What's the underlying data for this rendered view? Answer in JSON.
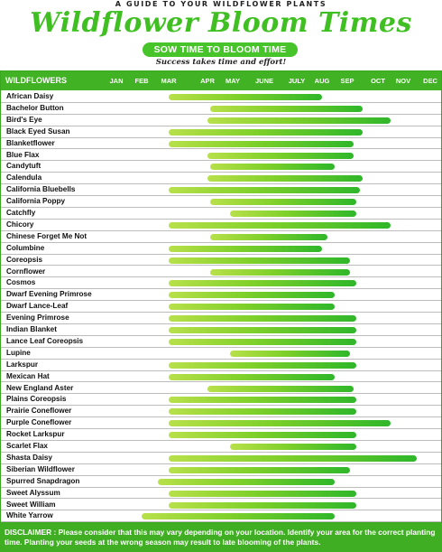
{
  "header": {
    "kicker": "A GUIDE TO YOUR WILDFLOWER PLANTS",
    "title": "Wildflower Bloom Times",
    "pill": "SOW TIME TO BLOOM TIME",
    "tagline": "Success takes time and effort!"
  },
  "chart_data": {
    "type": "bar",
    "orientation": "horizontal-range",
    "row_header": "WILDFLOWERS",
    "months": [
      "JAN",
      "FEB",
      "MAR",
      "APR",
      "MAY",
      "JUNE",
      "JULY",
      "AUG",
      "SEP",
      "OCT",
      "NOV",
      "DEC"
    ],
    "grid": true,
    "colors": {
      "bar_start": "#b8e04a",
      "bar_end": "#2fb72a",
      "header": "#41b224"
    },
    "rows": [
      {
        "name": "African Daisy",
        "start": 3.0,
        "end": 8.0
      },
      {
        "name": "Bachelor Button",
        "start": 4.1,
        "end": 9.5
      },
      {
        "name": "Bird's Eye",
        "start": 4.0,
        "end": 10.5
      },
      {
        "name": "Black Eyed Susan",
        "start": 3.0,
        "end": 9.5
      },
      {
        "name": "Blanketflower",
        "start": 3.0,
        "end": 9.2
      },
      {
        "name": "Blue Flax",
        "start": 4.0,
        "end": 9.2
      },
      {
        "name": "Candytuft",
        "start": 4.1,
        "end": 8.5
      },
      {
        "name": "Calendula",
        "start": 4.0,
        "end": 9.5
      },
      {
        "name": "California Bluebells",
        "start": 3.0,
        "end": 9.4
      },
      {
        "name": "California Poppy",
        "start": 4.1,
        "end": 9.3
      },
      {
        "name": "Catchfly",
        "start": 4.9,
        "end": 9.3
      },
      {
        "name": "Chicory",
        "start": 3.0,
        "end": 10.5
      },
      {
        "name": "Chinese Forget Me Not",
        "start": 4.1,
        "end": 8.2
      },
      {
        "name": "Columbine",
        "start": 3.0,
        "end": 8.0
      },
      {
        "name": "Coreopsis",
        "start": 3.0,
        "end": 9.1
      },
      {
        "name": "Cornflower",
        "start": 4.1,
        "end": 9.1
      },
      {
        "name": "Cosmos",
        "start": 3.0,
        "end": 9.3
      },
      {
        "name": "Dwarf Evening Primrose",
        "start": 3.0,
        "end": 8.5
      },
      {
        "name": "Dwarf Lance-Leaf",
        "start": 3.0,
        "end": 8.5
      },
      {
        "name": "Evening Primrose",
        "start": 3.0,
        "end": 9.3
      },
      {
        "name": "Indian Blanket",
        "start": 3.0,
        "end": 9.3
      },
      {
        "name": "Lance Leaf Coreopsis",
        "start": 3.0,
        "end": 9.3
      },
      {
        "name": "Lupine",
        "start": 4.9,
        "end": 9.1
      },
      {
        "name": "Larkspur",
        "start": 3.0,
        "end": 9.3
      },
      {
        "name": "Mexican Hat",
        "start": 3.0,
        "end": 8.5
      },
      {
        "name": "New England Aster",
        "start": 4.0,
        "end": 9.2
      },
      {
        "name": "Plains Coreopsis",
        "start": 3.0,
        "end": 9.3
      },
      {
        "name": "Prairie Coneflower",
        "start": 3.0,
        "end": 9.3
      },
      {
        "name": "Purple Coneflower",
        "start": 3.0,
        "end": 10.5
      },
      {
        "name": "Rocket Larkspur",
        "start": 3.0,
        "end": 9.3
      },
      {
        "name": "Scarlet Flax",
        "start": 4.9,
        "end": 9.3
      },
      {
        "name": "Shasta Daisy",
        "start": 3.0,
        "end": 11.5
      },
      {
        "name": "Siberian Wildflower",
        "start": 3.0,
        "end": 9.1
      },
      {
        "name": "Spurred Snapdragon",
        "start": 2.6,
        "end": 8.5
      },
      {
        "name": "Sweet Alyssum",
        "start": 3.0,
        "end": 9.3
      },
      {
        "name": "Sweet William",
        "start": 3.0,
        "end": 9.3
      },
      {
        "name": "White Yarrow",
        "start": 2.0,
        "end": 8.5
      }
    ]
  },
  "disclaimer": {
    "label": "DISCLAIMER :",
    "text": "Please consider that this may vary depending on your location. Identify your area for the correct planting time. Planting your seeds at the wrong season may result to late blooming of the plants."
  }
}
